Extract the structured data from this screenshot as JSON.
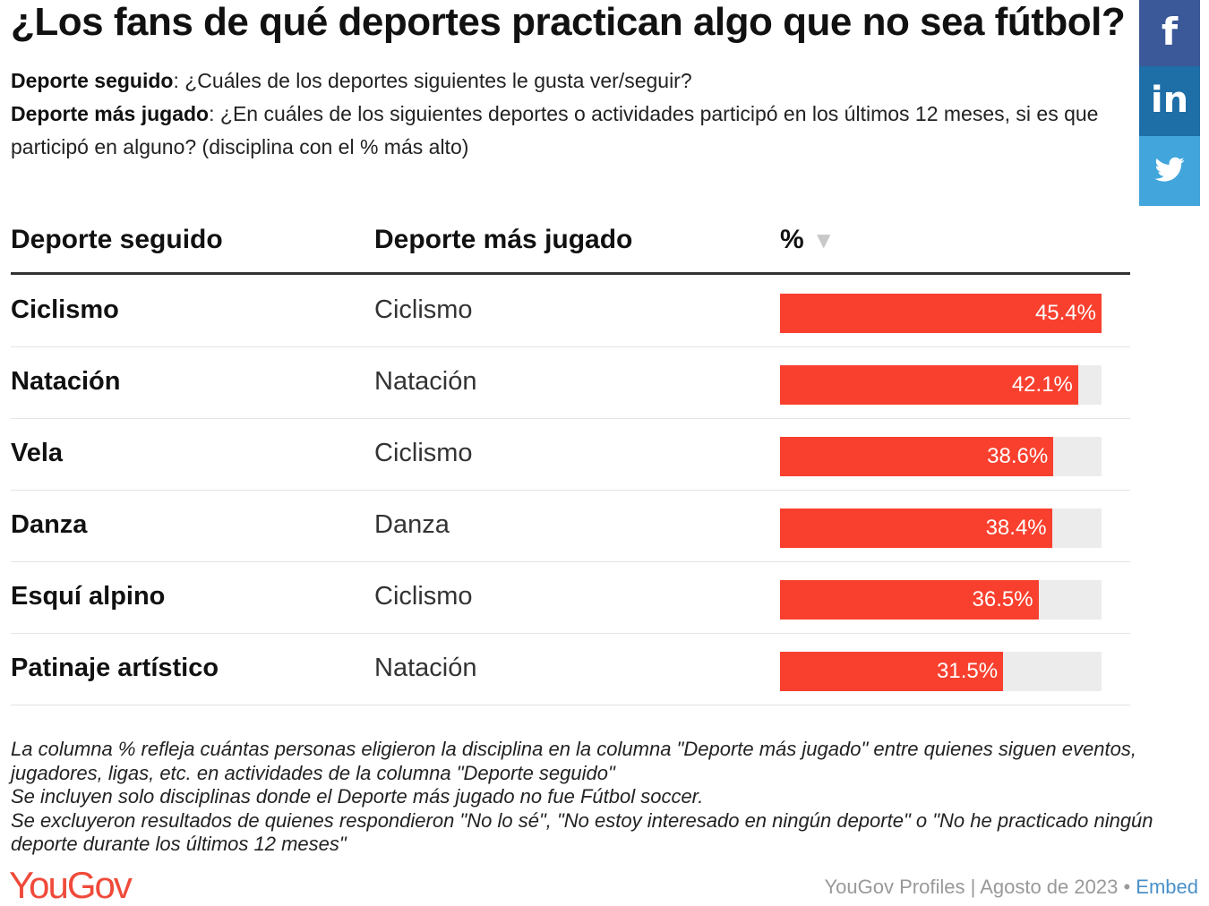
{
  "title": "¿Los fans de qué deportes practican algo que no sea fútbol?",
  "subtitle": {
    "line1_label": "Deporte seguido",
    "line1_text": ": ¿Cuáles de los deportes siguientes le gusta ver/seguir?",
    "line2_label": "Deporte más jugado",
    "line2_text": ": ¿En cuáles de los siguientes deportes o actividades participó en los últimos 12 meses, si es que participó en alguno? (disciplina con el % más alto)"
  },
  "share": {
    "facebook_glyph": "f",
    "linkedin_glyph": "in"
  },
  "headers": {
    "col1": "Deporte seguido",
    "col2": "Deporte más jugado",
    "col3": "%",
    "sort_glyph": "▼"
  },
  "chart_data": {
    "type": "table",
    "columns": [
      "Deporte seguido",
      "Deporte más jugado",
      "%"
    ],
    "xlim": [
      0,
      45.4
    ],
    "rows": [
      {
        "followed": "Ciclismo",
        "played": "Ciclismo",
        "value": 45.4,
        "label": "45.4%"
      },
      {
        "followed": "Natación",
        "played": "Natación",
        "value": 42.1,
        "label": "42.1%"
      },
      {
        "followed": "Vela",
        "played": "Ciclismo",
        "value": 38.6,
        "label": "38.6%"
      },
      {
        "followed": "Danza",
        "played": "Danza",
        "value": 38.4,
        "label": "38.4%"
      },
      {
        "followed": "Esquí alpino",
        "played": "Ciclismo",
        "value": 36.5,
        "label": "36.5%"
      },
      {
        "followed": "Patinaje artístico",
        "played": "Natación",
        "value": 31.5,
        "label": "31.5%"
      }
    ]
  },
  "notes": [
    "La columna % refleja cuántas personas eligieron la disciplina en la columna \"Deporte más jugado\" entre quienes siguen eventos, jugadores, ligas, etc. en actividades de la columna \"Deporte seguido\"",
    "Se incluyen solo disciplinas donde el Deporte más jugado no fue Fútbol soccer.",
    "Se excluyeron resultados de quienes respondieron \"No lo sé\", \"No estoy interesado en ningún deporte\" o \"No he practicado ningún deporte durante los últimos 12 meses\""
  ],
  "footer": {
    "logo": "YouGov",
    "source": "YouGov Profiles | Agosto de 2023",
    "separator": " • ",
    "embed": "Embed"
  },
  "colors": {
    "bar": "#f9402e",
    "track": "#ececec",
    "facebook": "#3b5998",
    "linkedin": "#1e6ea7",
    "twitter": "#42a5dc",
    "logo": "#f04a3a",
    "embed_link": "#4a90c8"
  },
  "icons": {
    "facebook": "facebook-icon",
    "linkedin": "linkedin-icon",
    "twitter": "twitter-icon",
    "sort": "sort-down-icon"
  }
}
